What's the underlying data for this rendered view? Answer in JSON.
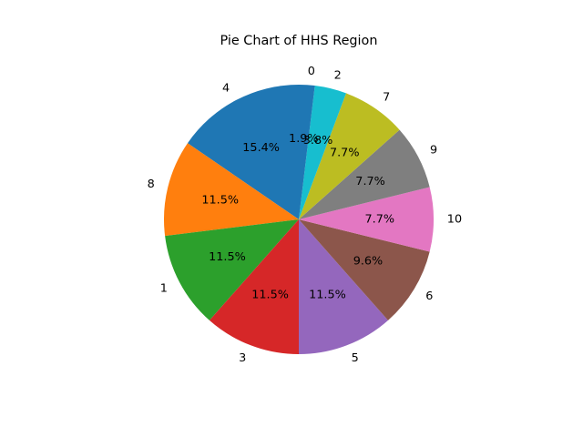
{
  "chart_data": {
    "type": "pie",
    "title": "Pie Chart of HHS Region",
    "start_angle_deg": 90,
    "direction": "counterclockwise",
    "slices": [
      {
        "label": "4",
        "value": 15.4,
        "pct_text": "15.4%",
        "color": "#1f77b4"
      },
      {
        "label": "8",
        "value": 11.5,
        "pct_text": "11.5%",
        "color": "#ff7f0e"
      },
      {
        "label": "1",
        "value": 11.5,
        "pct_text": "11.5%",
        "color": "#2ca02c"
      },
      {
        "label": "3",
        "value": 11.5,
        "pct_text": "11.5%",
        "color": "#d62728"
      },
      {
        "label": "5",
        "value": 11.5,
        "pct_text": "11.5%",
        "color": "#9467bd"
      },
      {
        "label": "6",
        "value": 9.6,
        "pct_text": "9.6%",
        "color": "#8c564b"
      },
      {
        "label": "10",
        "value": 7.7,
        "pct_text": "7.7%",
        "color": "#e377c2"
      },
      {
        "label": "9",
        "value": 7.7,
        "pct_text": "7.7%",
        "color": "#7f7f7f"
      },
      {
        "label": "7",
        "value": 7.7,
        "pct_text": "7.7%",
        "color": "#bcbd22"
      },
      {
        "label": "2",
        "value": 3.8,
        "pct_text": "3.8%",
        "color": "#17becf"
      },
      {
        "label": "0",
        "value": 1.9,
        "pct_text": "1.9%",
        "color": "#1f77b4"
      }
    ]
  }
}
